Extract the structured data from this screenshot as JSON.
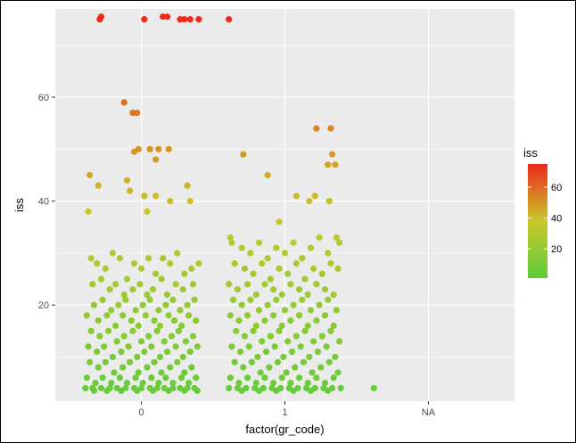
{
  "chart_data": {
    "type": "scatter",
    "title": "",
    "xlabel": "factor(gr_code)",
    "ylabel": "iss",
    "x_categories": [
      "0",
      "1",
      "NA"
    ],
    "x_tick_labels": [
      "0",
      "1",
      "NA"
    ],
    "y_ticks": [
      20,
      40,
      60
    ],
    "y_tick_labels": [
      "20",
      "40",
      "60"
    ],
    "xlim": [
      -0.6,
      2.6
    ],
    "ylim": [
      1.5,
      77
    ],
    "grid": true,
    "jitter_width": 0.4,
    "color_scale": {
      "variable": "iss",
      "title": "iss",
      "low_color": "#5fcc3c",
      "mid_color": "#c8c829",
      "high_color": "#ee2a1c",
      "range": [
        1,
        75
      ],
      "breaks": [
        20,
        40,
        60
      ],
      "break_labels": [
        "20",
        "40",
        "60"
      ]
    },
    "legend_position": "right",
    "background_color": "#ebebeb",
    "gridline_color": "#ffffff",
    "series": [
      {
        "group": "0",
        "points": [
          [
            -0.29,
            75
          ],
          [
            -0.28,
            75.5
          ],
          [
            0.02,
            75
          ],
          [
            0.15,
            75.5
          ],
          [
            0.18,
            75.5
          ],
          [
            0.27,
            75
          ],
          [
            0.3,
            75
          ],
          [
            0.34,
            75
          ],
          [
            0.4,
            75
          ],
          [
            0.61,
            75
          ],
          [
            -0.12,
            59
          ],
          [
            -0.06,
            57
          ],
          [
            -0.03,
            57
          ],
          [
            0.06,
            50
          ],
          [
            -0.05,
            49.5
          ],
          [
            0.19,
            50
          ],
          [
            -0.02,
            50
          ],
          [
            0.1,
            48
          ],
          [
            0.12,
            50
          ],
          [
            0.32,
            43
          ],
          [
            -0.36,
            45
          ],
          [
            -0.3,
            43
          ],
          [
            -0.1,
            44
          ],
          [
            -0.08,
            42
          ],
          [
            0.02,
            41
          ],
          [
            0.1,
            41
          ],
          [
            0.2,
            40
          ],
          [
            0.34,
            40
          ],
          [
            -0.37,
            38
          ],
          [
            0.04,
            38
          ],
          [
            -0.35,
            29
          ],
          [
            -0.31,
            28
          ],
          [
            -0.25,
            27
          ],
          [
            -0.2,
            30
          ],
          [
            -0.15,
            29
          ],
          [
            -0.1,
            25
          ],
          [
            -0.05,
            28
          ],
          [
            0.0,
            27
          ],
          [
            0.05,
            29
          ],
          [
            0.1,
            26
          ],
          [
            0.15,
            29
          ],
          [
            0.2,
            28
          ],
          [
            0.25,
            30
          ],
          [
            0.3,
            26
          ],
          [
            0.35,
            27
          ],
          [
            -0.34,
            24
          ],
          [
            -0.28,
            25
          ],
          [
            -0.22,
            23
          ],
          [
            -0.18,
            24
          ],
          [
            -0.12,
            22
          ],
          [
            -0.06,
            23
          ],
          [
            -0.01,
            24
          ],
          [
            0.04,
            22
          ],
          [
            0.08,
            23
          ],
          [
            0.14,
            25
          ],
          [
            0.18,
            22
          ],
          [
            0.24,
            24
          ],
          [
            0.29,
            23
          ],
          [
            0.36,
            24
          ],
          [
            0.4,
            28
          ],
          [
            -0.33,
            20
          ],
          [
            -0.27,
            21
          ],
          [
            -0.21,
            19
          ],
          [
            -0.16,
            20
          ],
          [
            -0.11,
            21
          ],
          [
            -0.04,
            19
          ],
          [
            0.01,
            20
          ],
          [
            0.06,
            21
          ],
          [
            0.12,
            19
          ],
          [
            0.17,
            20
          ],
          [
            0.22,
            21
          ],
          [
            0.27,
            19
          ],
          [
            0.32,
            20
          ],
          [
            0.37,
            21
          ],
          [
            -0.38,
            18
          ],
          [
            -0.3,
            17
          ],
          [
            -0.24,
            18
          ],
          [
            -0.18,
            16
          ],
          [
            -0.13,
            18
          ],
          [
            -0.07,
            17
          ],
          [
            -0.02,
            16
          ],
          [
            0.03,
            18
          ],
          [
            0.09,
            17
          ],
          [
            0.13,
            16
          ],
          [
            0.19,
            18
          ],
          [
            0.23,
            17
          ],
          [
            0.28,
            16
          ],
          [
            0.33,
            18
          ],
          [
            0.38,
            17
          ],
          [
            -0.35,
            15
          ],
          [
            -0.29,
            14
          ],
          [
            -0.23,
            15
          ],
          [
            -0.17,
            13
          ],
          [
            -0.12,
            14
          ],
          [
            -0.06,
            15
          ],
          [
            0.0,
            13
          ],
          [
            0.05,
            14
          ],
          [
            0.11,
            15
          ],
          [
            0.16,
            13
          ],
          [
            0.21,
            14
          ],
          [
            0.26,
            15
          ],
          [
            0.31,
            13
          ],
          [
            0.36,
            14
          ],
          [
            -0.37,
            12
          ],
          [
            -0.31,
            11
          ],
          [
            -0.26,
            12
          ],
          [
            -0.2,
            10
          ],
          [
            -0.14,
            11
          ],
          [
            -0.09,
            12
          ],
          [
            -0.03,
            10
          ],
          [
            0.02,
            11
          ],
          [
            0.07,
            12
          ],
          [
            0.13,
            10
          ],
          [
            0.18,
            11
          ],
          [
            0.24,
            12
          ],
          [
            0.29,
            10
          ],
          [
            0.34,
            11
          ],
          [
            0.39,
            12
          ],
          [
            -0.36,
            9
          ],
          [
            -0.3,
            8
          ],
          [
            -0.25,
            9
          ],
          [
            -0.19,
            7
          ],
          [
            -0.13,
            8
          ],
          [
            -0.08,
            9
          ],
          [
            -0.02,
            7
          ],
          [
            0.04,
            8
          ],
          [
            0.09,
            9
          ],
          [
            0.14,
            7
          ],
          [
            0.2,
            8
          ],
          [
            0.25,
            9
          ],
          [
            0.3,
            7
          ],
          [
            0.35,
            8
          ],
          [
            -0.38,
            6
          ],
          [
            -0.32,
            5
          ],
          [
            -0.27,
            6
          ],
          [
            -0.21,
            5
          ],
          [
            -0.15,
            6
          ],
          [
            -0.1,
            5
          ],
          [
            -0.04,
            6
          ],
          [
            0.01,
            5
          ],
          [
            0.07,
            6
          ],
          [
            0.12,
            5
          ],
          [
            0.17,
            6
          ],
          [
            0.22,
            5
          ],
          [
            0.28,
            6
          ],
          [
            0.33,
            5
          ],
          [
            0.38,
            6
          ],
          [
            -0.39,
            4
          ],
          [
            -0.34,
            4
          ],
          [
            -0.28,
            4
          ],
          [
            -0.22,
            4
          ],
          [
            -0.17,
            4
          ],
          [
            -0.11,
            4
          ],
          [
            -0.05,
            4
          ],
          [
            0.0,
            4
          ],
          [
            0.06,
            4
          ],
          [
            0.11,
            4
          ],
          [
            0.16,
            4
          ],
          [
            0.22,
            4
          ],
          [
            0.27,
            4
          ],
          [
            0.32,
            4
          ],
          [
            0.37,
            4
          ],
          [
            -0.33,
            3.5
          ],
          [
            -0.24,
            3.5
          ],
          [
            -0.14,
            3.5
          ],
          [
            -0.03,
            3.5
          ],
          [
            0.08,
            3.5
          ],
          [
            0.19,
            3.5
          ],
          [
            0.3,
            3.5
          ],
          [
            0.39,
            3.5
          ]
        ]
      },
      {
        "group": "1",
        "points": [
          [
            0.71,
            49
          ],
          [
            0.88,
            45
          ],
          [
            0.96,
            36
          ],
          [
            1.08,
            41
          ],
          [
            1.17,
            40
          ],
          [
            1.22,
            54
          ],
          [
            1.21,
            41
          ],
          [
            1.3,
            47
          ],
          [
            1.32,
            54
          ],
          [
            1.33,
            49
          ],
          [
            1.35,
            47
          ],
          [
            1.31,
            40
          ],
          [
            0.62,
            33
          ],
          [
            0.63,
            32
          ],
          [
            0.7,
            31
          ],
          [
            0.76,
            30
          ],
          [
            0.82,
            32
          ],
          [
            0.88,
            29
          ],
          [
            0.94,
            31
          ],
          [
            1.0,
            30
          ],
          [
            1.06,
            32
          ],
          [
            1.12,
            29
          ],
          [
            1.18,
            31
          ],
          [
            1.24,
            33
          ],
          [
            1.3,
            30
          ],
          [
            1.36,
            33
          ],
          [
            1.38,
            32
          ],
          [
            0.65,
            28
          ],
          [
            0.72,
            27
          ],
          [
            0.78,
            26
          ],
          [
            0.84,
            28
          ],
          [
            0.9,
            25
          ],
          [
            0.96,
            27
          ],
          [
            1.02,
            26
          ],
          [
            1.08,
            28
          ],
          [
            1.14,
            25
          ],
          [
            1.2,
            27
          ],
          [
            1.26,
            26
          ],
          [
            1.32,
            28
          ],
          [
            1.37,
            27
          ],
          [
            0.61,
            24
          ],
          [
            0.67,
            23
          ],
          [
            0.74,
            24
          ],
          [
            0.8,
            22
          ],
          [
            0.86,
            24
          ],
          [
            0.92,
            23
          ],
          [
            0.98,
            22
          ],
          [
            1.04,
            24
          ],
          [
            1.1,
            23
          ],
          [
            1.16,
            22
          ],
          [
            1.22,
            24
          ],
          [
            1.28,
            23
          ],
          [
            1.34,
            22
          ],
          [
            0.64,
            21
          ],
          [
            0.7,
            20
          ],
          [
            0.76,
            21
          ],
          [
            0.82,
            19
          ],
          [
            0.88,
            20
          ],
          [
            0.94,
            21
          ],
          [
            1.0,
            19
          ],
          [
            1.06,
            20
          ],
          [
            1.12,
            21
          ],
          [
            1.18,
            19
          ],
          [
            1.24,
            20
          ],
          [
            1.3,
            21
          ],
          [
            1.36,
            19
          ],
          [
            0.62,
            18
          ],
          [
            0.68,
            17
          ],
          [
            0.74,
            18
          ],
          [
            0.8,
            16
          ],
          [
            0.86,
            17
          ],
          [
            0.92,
            18
          ],
          [
            0.98,
            16
          ],
          [
            1.04,
            17
          ],
          [
            1.1,
            18
          ],
          [
            1.16,
            16
          ],
          [
            1.22,
            17
          ],
          [
            1.28,
            18
          ],
          [
            1.34,
            16
          ],
          [
            0.66,
            15
          ],
          [
            0.72,
            14
          ],
          [
            0.78,
            15
          ],
          [
            0.84,
            13
          ],
          [
            0.9,
            14
          ],
          [
            0.96,
            15
          ],
          [
            1.02,
            13
          ],
          [
            1.08,
            14
          ],
          [
            1.14,
            15
          ],
          [
            1.2,
            13
          ],
          [
            1.26,
            14
          ],
          [
            1.32,
            15
          ],
          [
            1.38,
            13
          ],
          [
            0.63,
            12
          ],
          [
            0.69,
            11
          ],
          [
            0.75,
            12
          ],
          [
            0.81,
            10
          ],
          [
            0.87,
            11
          ],
          [
            0.93,
            12
          ],
          [
            0.99,
            10
          ],
          [
            1.05,
            11
          ],
          [
            1.11,
            12
          ],
          [
            1.17,
            10
          ],
          [
            1.23,
            11
          ],
          [
            1.29,
            12
          ],
          [
            1.35,
            10
          ],
          [
            0.65,
            9
          ],
          [
            0.71,
            8
          ],
          [
            0.77,
            9
          ],
          [
            0.83,
            7
          ],
          [
            0.89,
            8
          ],
          [
            0.95,
            9
          ],
          [
            1.01,
            7
          ],
          [
            1.07,
            8
          ],
          [
            1.13,
            9
          ],
          [
            1.19,
            7
          ],
          [
            1.25,
            8
          ],
          [
            1.31,
            9
          ],
          [
            1.37,
            7
          ],
          [
            0.62,
            6
          ],
          [
            0.68,
            5
          ],
          [
            0.74,
            6
          ],
          [
            0.8,
            5
          ],
          [
            0.86,
            6
          ],
          [
            0.92,
            5
          ],
          [
            0.98,
            6
          ],
          [
            1.04,
            5
          ],
          [
            1.1,
            6
          ],
          [
            1.16,
            5
          ],
          [
            1.22,
            6
          ],
          [
            1.28,
            5
          ],
          [
            1.34,
            6
          ],
          [
            0.61,
            4
          ],
          [
            0.67,
            4
          ],
          [
            0.73,
            4
          ],
          [
            0.79,
            4
          ],
          [
            0.85,
            4
          ],
          [
            0.91,
            4
          ],
          [
            0.97,
            4
          ],
          [
            1.03,
            4
          ],
          [
            1.09,
            4
          ],
          [
            1.15,
            4
          ],
          [
            1.21,
            4
          ],
          [
            1.27,
            4
          ],
          [
            1.33,
            4
          ],
          [
            1.39,
            4
          ],
          [
            0.7,
            3.5
          ],
          [
            0.82,
            3.5
          ],
          [
            0.94,
            3.5
          ],
          [
            1.06,
            3.5
          ],
          [
            1.18,
            3.5
          ],
          [
            1.3,
            3.5
          ],
          [
            1.62,
            4
          ]
        ]
      }
    ]
  }
}
